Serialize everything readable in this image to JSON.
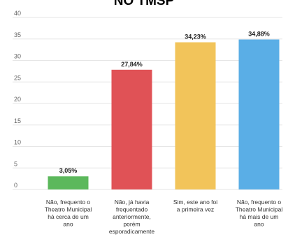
{
  "chart_data": {
    "type": "bar",
    "title": "NO TMSP",
    "xlabel": "",
    "ylabel": "",
    "ylim": [
      0,
      40
    ],
    "yticks": [
      0,
      5,
      10,
      15,
      20,
      25,
      30,
      35,
      40
    ],
    "grid": true,
    "legend": "none",
    "categories": [
      [
        "Não, frequento o",
        "Theatro Municipal",
        "há cerca de um",
        "ano"
      ],
      [
        "Não, já havia",
        "frequentado",
        "anteriormente,",
        "porém",
        "esporadicamente"
      ],
      [
        "Sim, este ano foi",
        "a primeira vez"
      ],
      [
        "Não, frequento o",
        "Theatro Municipal",
        "há mais de um",
        "ano"
      ]
    ],
    "values": [
      3.05,
      27.84,
      34.23,
      34.88
    ],
    "data_labels": [
      "3,05%",
      "27,84%",
      "34,23%",
      "34,88%"
    ],
    "colors": [
      "#5cb85c",
      "#e05256",
      "#f2c45a",
      "#5aaee6"
    ]
  }
}
